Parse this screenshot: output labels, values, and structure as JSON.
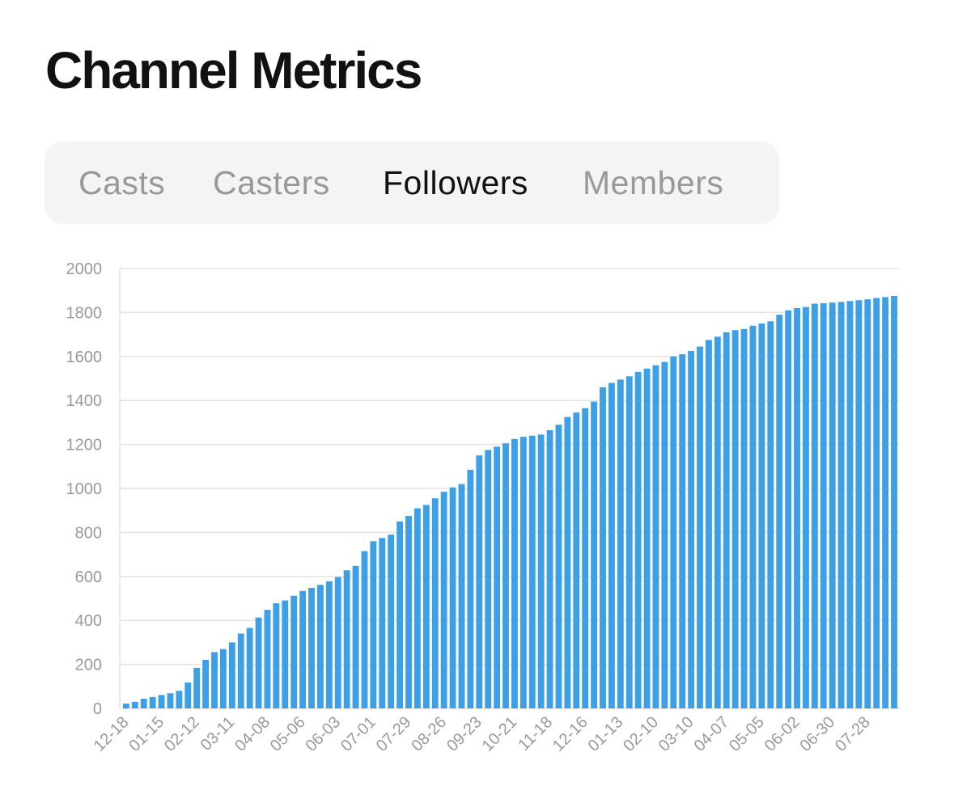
{
  "page_title": "Channel Metrics",
  "tabs": [
    {
      "label": "Casts",
      "active": false
    },
    {
      "label": "Casters",
      "active": false
    },
    {
      "label": "Followers",
      "active": true
    },
    {
      "label": "Members",
      "active": false
    }
  ],
  "chart_data": {
    "type": "bar",
    "bar_color": "#3d9fe6",
    "grid": true,
    "ylim": [
      0,
      2000
    ],
    "yticks": [
      0,
      200,
      400,
      600,
      800,
      1000,
      1200,
      1400,
      1600,
      1800,
      2000
    ],
    "tick_every": 4,
    "xtick_labels": [
      "12-18",
      "01-15",
      "02-12",
      "03-11",
      "04-08",
      "05-06",
      "06-03",
      "07-01",
      "07-29",
      "08-26",
      "09-23",
      "10-21",
      "11-18",
      "12-16",
      "01-13",
      "02-10",
      "03-10",
      "04-07",
      "05-05",
      "06-02",
      "06-30",
      "07-28"
    ],
    "values": [
      22,
      30,
      44,
      52,
      61,
      69,
      80,
      118,
      184,
      221,
      256,
      270,
      300,
      340,
      366,
      413,
      448,
      478,
      491,
      512,
      534,
      548,
      562,
      578,
      597,
      628,
      648,
      715,
      760,
      775,
      790,
      850,
      875,
      910,
      925,
      955,
      985,
      1005,
      1020,
      1085,
      1150,
      1175,
      1190,
      1205,
      1225,
      1235,
      1240,
      1245,
      1265,
      1290,
      1325,
      1345,
      1365,
      1395,
      1460,
      1480,
      1495,
      1510,
      1530,
      1545,
      1560,
      1575,
      1600,
      1610,
      1625,
      1645,
      1675,
      1690,
      1710,
      1720,
      1725,
      1740,
      1750,
      1760,
      1790,
      1810,
      1820,
      1825,
      1840,
      1842,
      1845,
      1848,
      1852,
      1856,
      1860,
      1866,
      1870,
      1875
    ]
  }
}
